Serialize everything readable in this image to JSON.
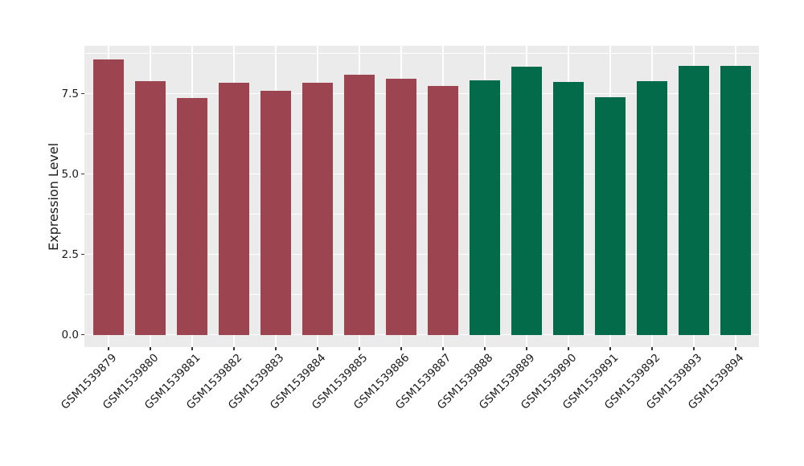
{
  "chart_data": {
    "type": "bar",
    "title": "",
    "xlabel": "",
    "ylabel": "Expression Level",
    "categories": [
      "GSM1539879",
      "GSM1539880",
      "GSM1539881",
      "GSM1539882",
      "GSM1539883",
      "GSM1539884",
      "GSM1539885",
      "GSM1539886",
      "GSM1539887",
      "GSM1539888",
      "GSM1539889",
      "GSM1539890",
      "GSM1539891",
      "GSM1539892",
      "GSM1539893",
      "GSM1539894"
    ],
    "values": [
      8.57,
      7.9,
      7.38,
      7.84,
      7.6,
      7.85,
      8.09,
      7.96,
      7.74,
      7.91,
      8.34,
      7.86,
      7.39,
      7.9,
      8.38,
      8.38
    ],
    "bar_colors": [
      "#9C4450",
      "#9C4450",
      "#9C4450",
      "#9C4450",
      "#9C4450",
      "#9C4450",
      "#9C4450",
      "#9C4450",
      "#9C4450",
      "#046B4A",
      "#046B4A",
      "#046B4A",
      "#046B4A",
      "#046B4A",
      "#046B4A",
      "#046B4A"
    ],
    "color_groups": [
      {
        "color": "#9C4450",
        "from": "GSM1539879",
        "to": "GSM1539887"
      },
      {
        "color": "#046B4A",
        "from": "GSM1539888",
        "to": "GSM1539894"
      }
    ],
    "yticks": {
      "values": [
        0,
        2.5,
        5,
        7.5
      ],
      "labels": [
        "0.0",
        "2.5",
        "5.0",
        "7.5"
      ]
    },
    "yticks_minor": [
      1.25,
      3.75,
      6.25,
      8.75
    ],
    "ylim": [
      -0.36,
      9.0
    ],
    "x_tick_rotation_deg": 45,
    "legend": "none",
    "grid": "major and minor horizontal + major vertical, white on gray panel",
    "panel_bg": "#EBEBEB",
    "grid_color": "#FFFFFF",
    "text_color": "#1A1A1A",
    "tick_mark_color": "#343434"
  }
}
